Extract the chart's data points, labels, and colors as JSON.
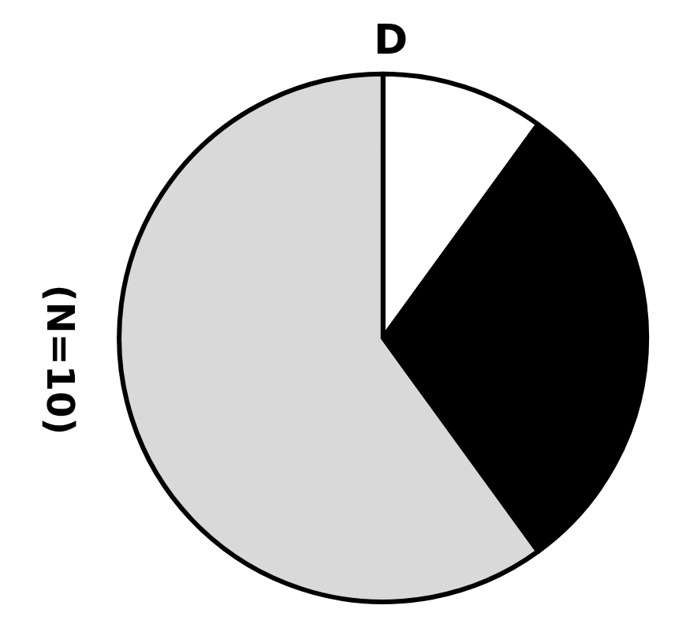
{
  "chart_data": {
    "type": "pie",
    "title": "D",
    "annotations": [
      "(N=10)"
    ],
    "categories": [
      null,
      null,
      null
    ],
    "values": [
      10,
      30,
      60
    ],
    "colors": [
      "#ffffff",
      "#000000",
      "#d9d9d9"
    ]
  }
}
